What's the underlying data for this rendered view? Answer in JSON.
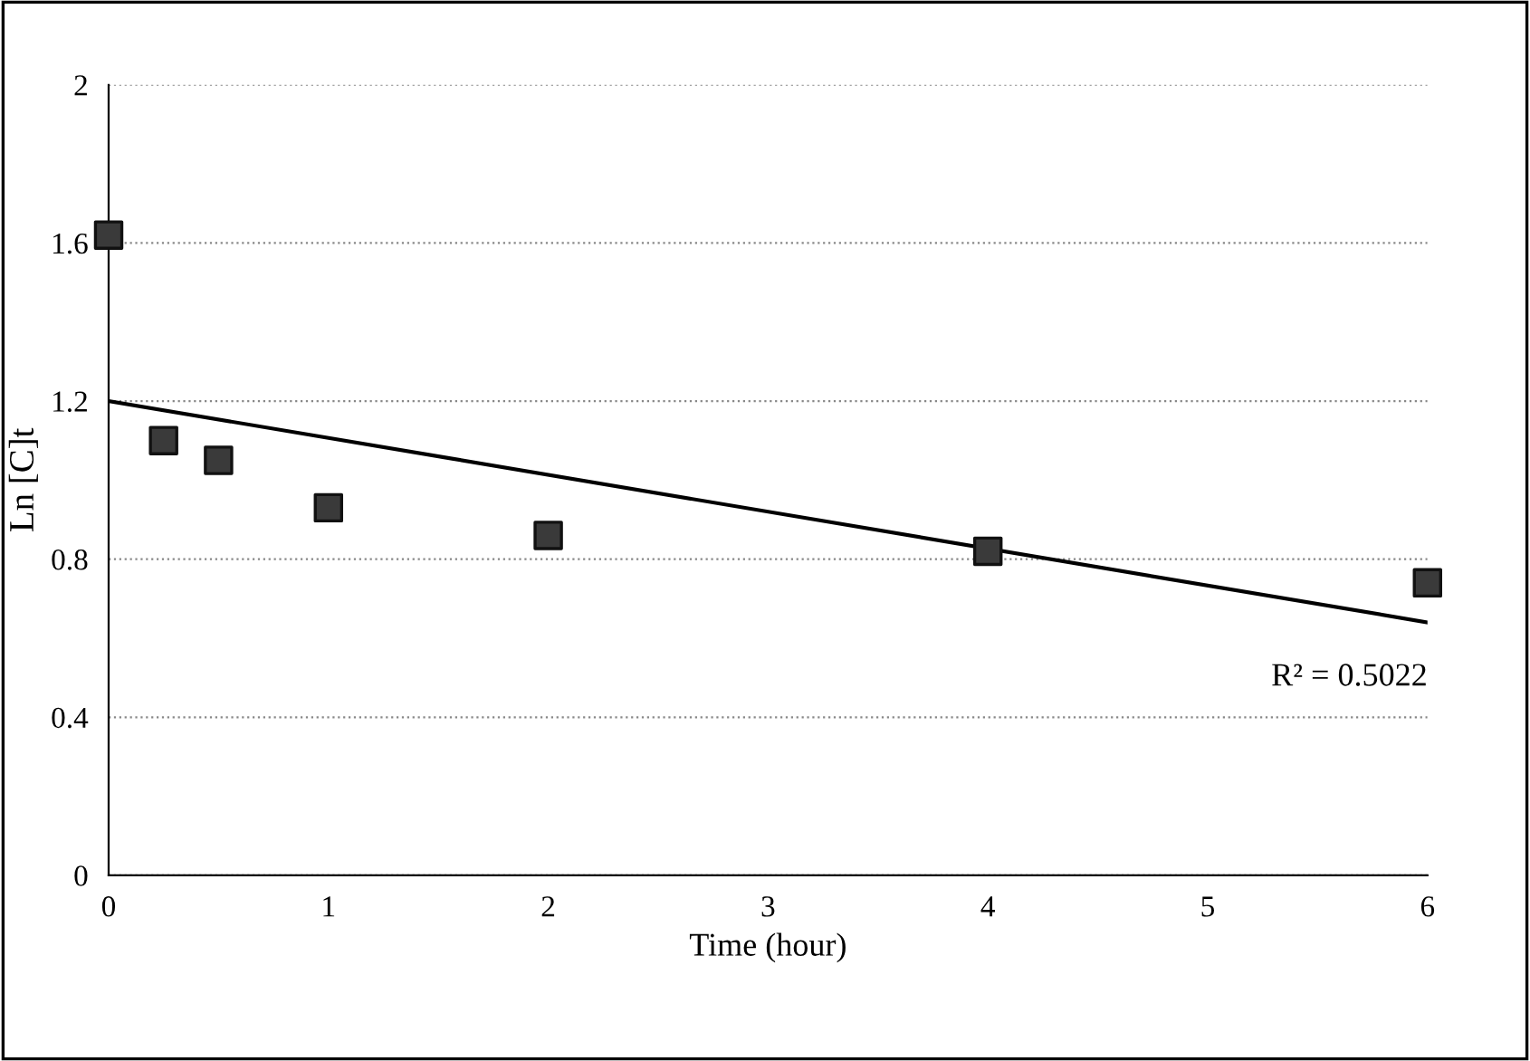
{
  "chart_data": {
    "type": "scatter",
    "xlabel": "Time (hour)",
    "ylabel": "Ln [C]t",
    "series": [
      {
        "color": "#3a3a3a",
        "marker": "square",
        "x": [
          0,
          0.25,
          0.5,
          1,
          2,
          4,
          6
        ],
        "values": [
          1.62,
          1.1,
          1.05,
          0.93,
          0.86,
          0.82,
          0.74
        ]
      },
      {
        "type": "line",
        "color": "#000000",
        "line_style": "solid",
        "x": [
          0,
          6
        ],
        "values": [
          1.2,
          0.64
        ]
      }
    ],
    "xlim": [
      0,
      6
    ],
    "xticks": [
      0,
      1,
      2,
      3,
      4,
      5,
      6
    ],
    "ylim": [
      0,
      2
    ],
    "yticks": [
      0,
      0.4,
      0.8,
      1.2,
      1.6,
      2
    ],
    "grid": "y",
    "legend": false,
    "annotations": [
      "R² = 0.5022"
    ]
  }
}
